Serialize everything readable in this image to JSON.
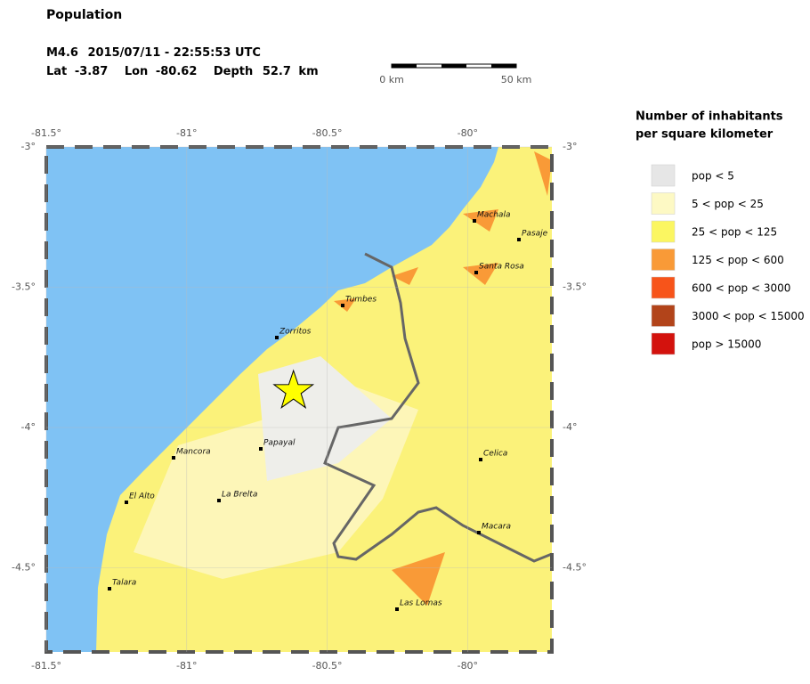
{
  "title": "Population",
  "event": {
    "magnitude": "M4.6",
    "datetime": "2015/07/11 - 22:55:53 UTC",
    "lat_label": "Lat",
    "lat": -3.87,
    "lon_label": "Lon",
    "lon": -80.62,
    "depth_label": "Depth",
    "depth": 52.7,
    "depth_unit": "km"
  },
  "scale_bar": {
    "start_label": "0 km",
    "end_label": "50 km"
  },
  "map": {
    "xlim": [
      -81.5,
      -79.7
    ],
    "ylim": [
      -4.8,
      -3.0
    ],
    "xticks": [
      {
        "value": -81.5,
        "label": "-81.5°"
      },
      {
        "value": -81,
        "label": "-81°"
      },
      {
        "value": -80.5,
        "label": "-80.5°"
      },
      {
        "value": -80,
        "label": "-80°"
      }
    ],
    "yticks": [
      {
        "value": -3,
        "label": "-3°"
      },
      {
        "value": -3.5,
        "label": "-3.5°"
      },
      {
        "value": -4,
        "label": "-4°"
      },
      {
        "value": -4.5,
        "label": "-4.5°"
      }
    ],
    "cities": [
      "Machala",
      "Pasaje",
      "Santa Rosa",
      "Tumbes",
      "Zorritos",
      "Papayal",
      "Mancora",
      "Celica",
      "El Alto",
      "La Brelta",
      "Macara",
      "Talara",
      "Las Lomas"
    ]
  },
  "legend": {
    "title": [
      "Number of inhabitants",
      "per square kilometer"
    ],
    "items": [
      {
        "label": "pop < 5",
        "color": "#e6e6e6"
      },
      {
        "label": "5 < pop < 25",
        "color": "#fdf9c4"
      },
      {
        "label": "25 < pop < 125",
        "color": "#fbf661"
      },
      {
        "label": "125 < pop < 600",
        "color": "#f99a37"
      },
      {
        "label": "600 < pop < 3000",
        "color": "#f7541a"
      },
      {
        "label": "3000 < pop < 15000",
        "color": "#b2441a"
      },
      {
        "label": "pop > 15000",
        "color": "#d3120d"
      }
    ]
  }
}
